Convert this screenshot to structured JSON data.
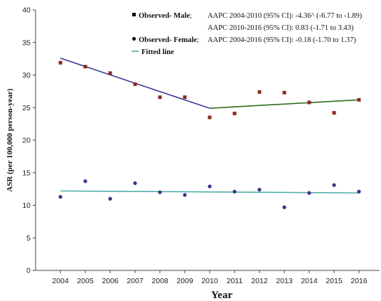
{
  "chart_data": {
    "type": "scatter",
    "x": [
      2004,
      2005,
      2006,
      2007,
      2008,
      2009,
      2010,
      2011,
      2012,
      2013,
      2014,
      2015,
      2016
    ],
    "xlabel": "Year",
    "ylabel": "ASR (per 100,000 person-year)",
    "ylim": [
      0,
      40
    ],
    "yticks": [
      0,
      5,
      10,
      15,
      20,
      25,
      30,
      35,
      40
    ],
    "series": [
      {
        "name": "Observed- Male",
        "marker": "square",
        "color": "#8b2a22",
        "values": [
          31.9,
          31.3,
          30.3,
          28.6,
          26.6,
          26.6,
          23.5,
          24.1,
          27.4,
          27.3,
          25.8,
          24.2,
          26.2
        ]
      },
      {
        "name": "Observed- Female",
        "marker": "circle",
        "color": "#4b2a8a",
        "values": [
          11.3,
          13.7,
          11.0,
          13.4,
          12.0,
          11.6,
          12.9,
          12.1,
          12.4,
          9.7,
          11.9,
          13.1,
          12.1
        ]
      }
    ],
    "fitted_lines": [
      {
        "color": "#3a3a9a",
        "x": [
          2004,
          2010
        ],
        "y": [
          32.6,
          24.9
        ]
      },
      {
        "color": "#2e6e1e",
        "x": [
          2010,
          2016
        ],
        "y": [
          24.9,
          26.2
        ]
      },
      {
        "color": "#4fb0a8",
        "x": [
          2004,
          2016
        ],
        "y": [
          12.2,
          11.9
        ]
      }
    ],
    "legend": {
      "placement": "top-right",
      "items": [
        {
          "marker": "square",
          "label": "Observed- Male",
          "suffix": ";",
          "stat": "AAPC 2004-2010 (95% CI): -4.36^ (-6.77 to -1.89)"
        },
        {
          "marker": "none",
          "label": "",
          "suffix": "",
          "stat": "AAPC 2010-2016 (95% CI): 0.83 (-1.71 to 3.43)"
        },
        {
          "marker": "circle",
          "label": "Observed- Female",
          "suffix": ";",
          "stat": "AAPC 2004-2016 (95% CI): -0.18 (-1.70 to 1.37)"
        },
        {
          "marker": "line",
          "label": "Fitted line",
          "suffix": "",
          "stat": ""
        }
      ]
    }
  }
}
